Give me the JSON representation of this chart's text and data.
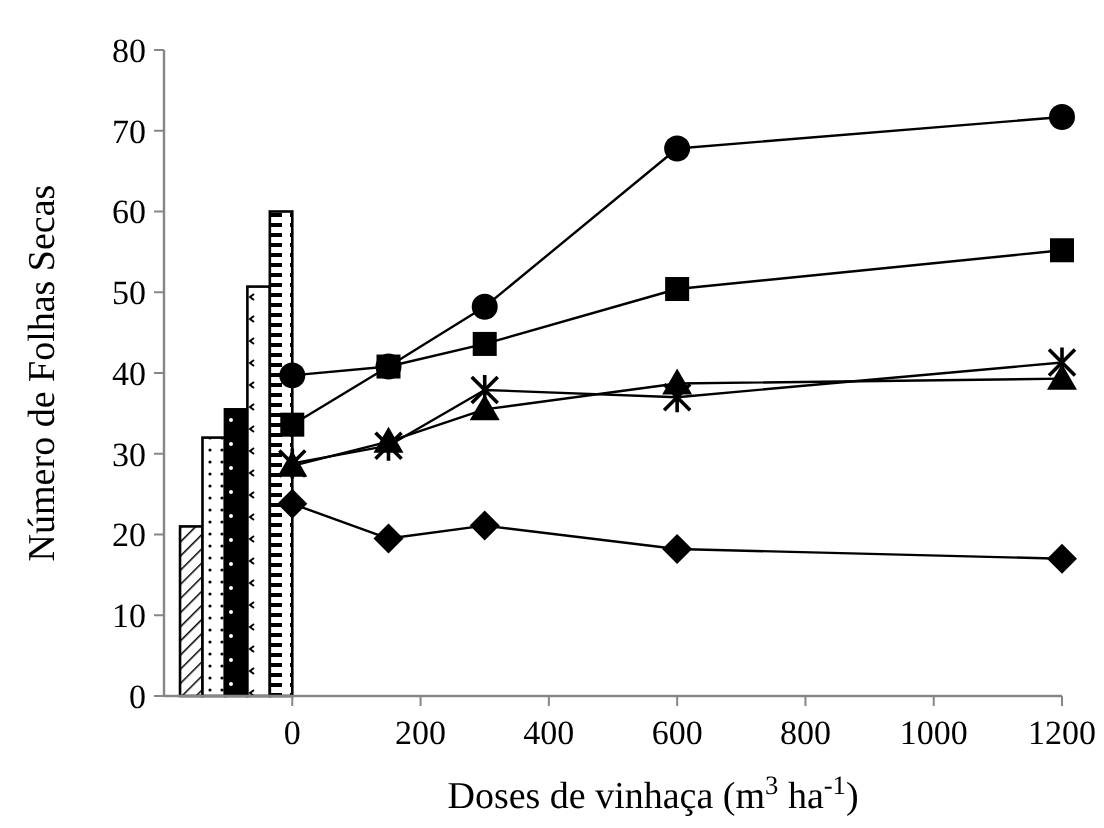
{
  "chart_data": {
    "type": "line",
    "xlabel": "Doses de vinhaça (m$^{3}$ ha$^{-1}$)",
    "ylabel": "Número de Folhas Secas",
    "xlim": [
      -200,
      1200
    ],
    "xticks": [
      0,
      200,
      400,
      600,
      800,
      1000,
      1200
    ],
    "ylim": [
      0,
      80
    ],
    "yticks": [
      0,
      10,
      20,
      30,
      40,
      50,
      60,
      70,
      80
    ],
    "grid": false,
    "series": [
      {
        "type": "bar",
        "x": [
          -157.5,
          -122.5,
          -87.5,
          -52.5,
          -17.5
        ],
        "values": [
          21,
          32,
          35.5,
          50.7,
          60
        ],
        "colors": [
          "#000000",
          "#000000",
          "#000000",
          "#000000",
          "#000000"
        ]
      },
      {
        "x": [
          0,
          150,
          300,
          600,
          1200
        ],
        "values": [
          39.7,
          40.8,
          48.2,
          67.8,
          71.7
        ],
        "color": "#000000",
        "marker": "circle",
        "line_style": "solid"
      },
      {
        "x": [
          0,
          150,
          300,
          600,
          1200
        ],
        "values": [
          33.6,
          40.8,
          43.6,
          50.4,
          55.2
        ],
        "color": "#000000",
        "marker": "square",
        "line_style": "solid"
      },
      {
        "x": [
          0,
          150,
          300,
          600,
          1200
        ],
        "values": [
          28.8,
          31,
          37.9,
          37,
          41.3
        ],
        "color": "#000000",
        "marker": "cross",
        "line_style": "solid"
      },
      {
        "x": [
          0,
          150,
          300,
          600,
          1200
        ],
        "values": [
          28.5,
          31.5,
          35.5,
          38.7,
          39.3
        ],
        "color": "#000000",
        "marker": "triangle",
        "line_style": "solid"
      },
      {
        "x": [
          0,
          150,
          300,
          600,
          1200
        ],
        "values": [
          23.8,
          19.5,
          21.1,
          18.2,
          17
        ],
        "color": "#000000",
        "marker": "diamond",
        "line_style": "solid"
      }
    ]
  }
}
